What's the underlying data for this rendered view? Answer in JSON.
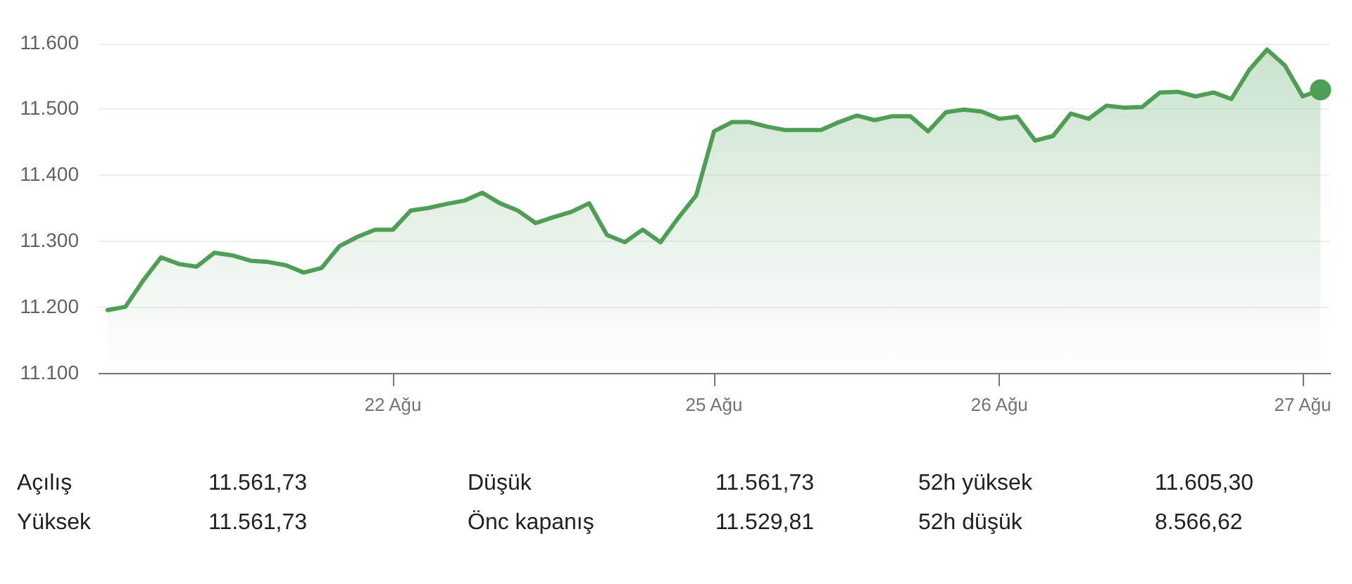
{
  "chart_data": {
    "type": "area",
    "categories": [
      null,
      null,
      null,
      null,
      null,
      null,
      null,
      null,
      null,
      null,
      null,
      null,
      null,
      null,
      null,
      null,
      "22 Ağu",
      null,
      null,
      null,
      null,
      null,
      null,
      null,
      null,
      null,
      null,
      null,
      null,
      null,
      null,
      null,
      null,
      null,
      "25 Ağu",
      null,
      null,
      null,
      null,
      null,
      null,
      null,
      null,
      null,
      null,
      null,
      null,
      null,
      null,
      null,
      "26 Ağu",
      null,
      null,
      null,
      null,
      null,
      null,
      null,
      null,
      null,
      null,
      null,
      null,
      null,
      null,
      null,
      null,
      "27 Ağu",
      null
    ],
    "series": [
      {
        "color": "#4e9f55",
        "values": [
          11196,
          11201,
          11241,
          11276,
          11266,
          11262,
          11283,
          11279,
          11271,
          11269,
          11264,
          11253,
          11260,
          11293,
          11307,
          11318,
          11318,
          11347,
          11351,
          11357,
          11362,
          11374,
          11358,
          11347,
          11328,
          11337,
          11345,
          11358,
          11310,
          11299,
          11318,
          11299,
          11336,
          11370,
          11467,
          11481,
          11481,
          11474,
          11469,
          11469,
          11469,
          11481,
          11491,
          11484,
          11490,
          11490,
          11467,
          11496,
          11500,
          11497,
          11486,
          11489,
          11453,
          11460,
          11494,
          11486,
          11506,
          11503,
          11504,
          11526,
          11527,
          11520,
          11526,
          11516,
          11560,
          11591,
          11567,
          11520,
          11530
        ]
      },
      {
        "type": "scatter",
        "color": "#4e9f55",
        "marker": "circle",
        "values": [
          null,
          null,
          null,
          null,
          null,
          null,
          null,
          null,
          null,
          null,
          null,
          null,
          null,
          null,
          null,
          null,
          null,
          null,
          null,
          null,
          null,
          null,
          null,
          null,
          null,
          null,
          null,
          null,
          null,
          null,
          null,
          null,
          null,
          null,
          null,
          null,
          null,
          null,
          null,
          null,
          null,
          null,
          null,
          null,
          null,
          null,
          null,
          null,
          null,
          null,
          null,
          null,
          null,
          null,
          null,
          null,
          null,
          null,
          null,
          null,
          null,
          null,
          null,
          null,
          null,
          null,
          null,
          null,
          11530
        ]
      }
    ],
    "ylim": [
      11100,
      11600
    ],
    "yticks": [
      {
        "value": 11100,
        "label": "11.100"
      },
      {
        "value": 11200,
        "label": "11.200"
      },
      {
        "value": 11300,
        "label": "11.300"
      },
      {
        "value": 11400,
        "label": "11.400"
      },
      {
        "value": 11500,
        "label": "11.500"
      },
      {
        "value": 11600,
        "label": "11.600"
      }
    ],
    "grid": "y",
    "legend": false,
    "annotations": [
      "Açılış",
      "11.561,73",
      "Düşük",
      "11.561,73",
      "52h yüksek",
      "11.605,30",
      "Yüksek",
      "11.561,73",
      "Önc kapanış",
      "11.529,81",
      "52h düşük",
      "8.566,62"
    ]
  }
}
